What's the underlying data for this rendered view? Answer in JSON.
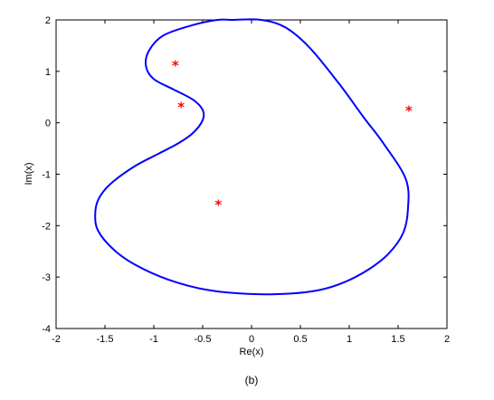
{
  "caption": "(b)",
  "chart_data": {
    "type": "scatter",
    "xlabel": "Re(x)",
    "ylabel": "Im(x)",
    "xlim": [
      -2,
      2
    ],
    "ylim": [
      -4,
      2
    ],
    "x_ticks": [
      -2,
      -1.5,
      -1,
      -0.5,
      0,
      0.5,
      1,
      1.5,
      2
    ],
    "x_tick_labels": [
      "-2",
      "-1.5",
      "-1",
      "-0.5",
      "0",
      "0.5",
      "1",
      "1.5",
      "2"
    ],
    "y_ticks": [
      -4,
      -3,
      -2,
      -1,
      0,
      1,
      2
    ],
    "y_tick_labels": [
      "-4",
      "-3",
      "-2",
      "-1",
      "0",
      "1",
      "2"
    ],
    "grid": false,
    "series": [
      {
        "kind": "closed-curve",
        "color": "#0000ff",
        "x": [
          -0.2,
          0.1,
          0.35,
          0.6,
          0.9,
          1.15,
          1.35,
          1.58,
          1.6,
          1.55,
          1.4,
          1.2,
          0.95,
          0.7,
          0.4,
          0.0,
          -0.45,
          -0.85,
          -1.2,
          -1.42,
          -1.57,
          -1.6,
          -1.57,
          -1.45,
          -1.2,
          -0.95,
          -0.75,
          -0.6,
          -0.5,
          -0.5,
          -0.6,
          -0.8,
          -1.0,
          -1.08,
          -1.05,
          -0.9,
          -0.6,
          -0.35,
          -0.2
        ],
        "y": [
          2.0,
          2.0,
          1.85,
          1.45,
          0.75,
          0.1,
          -0.4,
          -1.1,
          -1.7,
          -2.15,
          -2.55,
          -2.85,
          -3.1,
          -3.25,
          -3.32,
          -3.33,
          -3.25,
          -3.05,
          -2.75,
          -2.45,
          -2.1,
          -1.8,
          -1.5,
          -1.2,
          -0.85,
          -0.6,
          -0.4,
          -0.2,
          0.05,
          0.25,
          0.45,
          0.65,
          0.85,
          1.1,
          1.4,
          1.7,
          1.9,
          2.0,
          2.0
        ]
      },
      {
        "kind": "points",
        "color": "#ff0000",
        "marker": "*",
        "x": [
          -0.78,
          -0.72,
          -0.34,
          1.61
        ],
        "y": [
          1.13,
          0.32,
          -1.58,
          0.25
        ]
      }
    ]
  }
}
